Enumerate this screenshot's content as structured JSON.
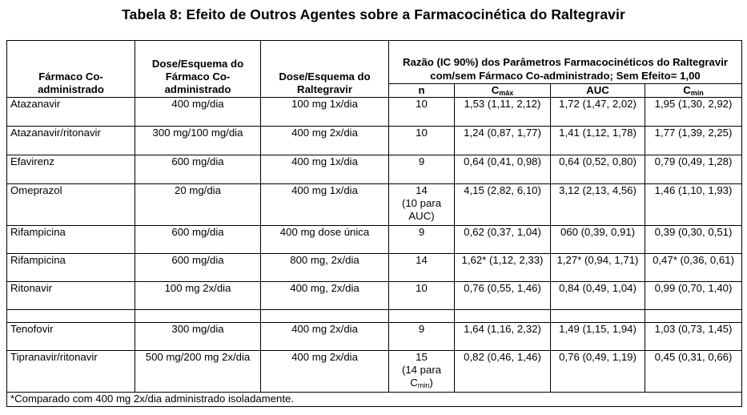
{
  "title": "Tabela 8: Efeito de Outros Agentes sobre a Farmacocinética do Raltegravir",
  "headers": {
    "drug": "Fármaco Co-administrado",
    "drug_dose": "Dose/Esquema do Fármaco Co-administrado",
    "ral_dose": "Dose/Esquema do Raltegravir",
    "ratio": "Razão (IC 90%) dos Parâmetros Farmacocinéticos do Raltegravir com/sem Fármaco Co-administrado; Sem Efeito= 1,00",
    "n": "n",
    "cmax_base": "C",
    "cmax_sub": "máx",
    "auc": "AUC",
    "cmin_base": "C",
    "cmin_sub": "min"
  },
  "rows": [
    {
      "drug": "Atazanavir",
      "drug_dose": "400 mg/dia",
      "ral_dose": "100 mg 1x/dia",
      "n": "10",
      "cmax": "1,53 (1,11, 2,12)",
      "auc": "1,72 (1,47, 2,02)",
      "cmin": "1,95 (1,30, 2,92)"
    },
    {
      "drug": "Atazanavir/ritonavir",
      "drug_dose": "300 mg/100 mg/dia",
      "ral_dose": "400 mg 2x/dia",
      "n": "10",
      "cmax": "1,24 (0,87, 1,77)",
      "auc": "1,41 (1,12, 1,78)",
      "cmin": "1,77 (1,39, 2,25)"
    },
    {
      "drug": "Efavirenz",
      "drug_dose": "600 mg/dia",
      "ral_dose": "400 mg 1x/dia",
      "n": "9",
      "cmax": "0,64 (0,41, 0,98)",
      "auc": "0,64 (0,52, 0,80)",
      "cmin": "0,79 (0,49, 1,28)"
    },
    {
      "drug": "Omeprazol",
      "drug_dose": "20 mg/dia",
      "ral_dose": "400 mg 1x/dia",
      "n": "14",
      "n_note": "(10 para AUC)",
      "cmax": "4,15 (2,82, 6,10)",
      "auc": "3,12 (2,13, 4,56)",
      "cmin": "1,46 (1,10, 1,93)"
    },
    {
      "drug": "Rifampicina",
      "drug_dose": "600 mg/dia",
      "ral_dose": "400 mg dose única",
      "n": "9",
      "cmax": "0,62 (0,37, 1,04)",
      "auc": "060 (0,39, 0,91)",
      "cmin": "0,39 (0,30, 0,51)"
    },
    {
      "drug": "Rifampicina",
      "drug_dose": "600 mg/dia",
      "ral_dose": "800 mg, 2x/dia",
      "n": "14",
      "cmax": "1,62* (1,12, 2,33)",
      "auc": "1,27* (0,94, 1,71)",
      "cmin": "0,47* (0,36, 0,61)"
    },
    {
      "drug": "Ritonavir",
      "drug_dose": "100 mg 2x/dia",
      "ral_dose": "400 mg, 2x/dia",
      "n": "10",
      "cmax": "0,76 (0,55, 1,46)",
      "auc": "0,84 (0,49, 1,04)",
      "cmin": "0,99 (0,70, 1,40)"
    },
    {
      "drug": "Tenofovir",
      "drug_dose": "300 mg/dia",
      "ral_dose": "400 mg 2x/dia",
      "n": "9",
      "cmax": "1,64 (1,16, 2,32)",
      "auc": "1,49 (1,15, 1,94)",
      "cmin": "1,03 (0,73, 1,45)"
    },
    {
      "drug": "Tipranavir/ritonavir",
      "drug_dose": "500 mg/200 mg 2x/dia",
      "ral_dose": "400 mg 2x/dia",
      "n": "15",
      "n_note": "(14 para",
      "n_note2_base": "C",
      "n_note2_sub": "min",
      "n_note2_end": ")",
      "cmax": "0,82 (0,46, 1,46)",
      "auc": "0,76 (0,49, 1,19)",
      "cmin": "0,45 (0,31, 0,66)"
    }
  ],
  "footnote": "*Comparado com 400 mg 2x/dia administrado isoladamente."
}
